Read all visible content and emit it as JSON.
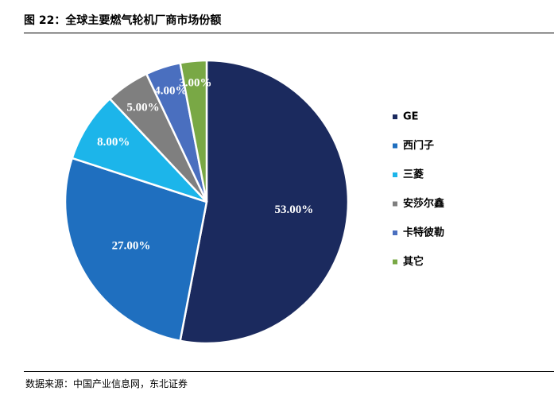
{
  "figure": {
    "title": "图 22：全球主要燃气轮机厂商市场份额",
    "source": "数据来源：中国产业信息网，东北证券"
  },
  "chart_data": {
    "type": "pie",
    "title": "全球主要燃气轮机厂商市场份额",
    "categories": [
      "GE",
      "西门子",
      "三菱",
      "安莎尔鑫",
      "卡特彼勒",
      "其它"
    ],
    "values": [
      53.0,
      27.0,
      8.0,
      5.0,
      4.0,
      3.0
    ],
    "value_labels": [
      "53.00%",
      "27.00%",
      "8.00%",
      "5.00%",
      "4.00%",
      "3.00%"
    ],
    "colors": [
      "#1b2a5e",
      "#1f6fbf",
      "#1cb5ea",
      "#7f7f7f",
      "#4a6fbf",
      "#79a845"
    ],
    "label_colors": [
      "#ffffff",
      "#ffffff",
      "#ffffff",
      "#ffffff",
      "#ffffff",
      "#ffffff"
    ],
    "start_angle_deg": 0,
    "direction": "clockwise",
    "legend_position": "right"
  }
}
